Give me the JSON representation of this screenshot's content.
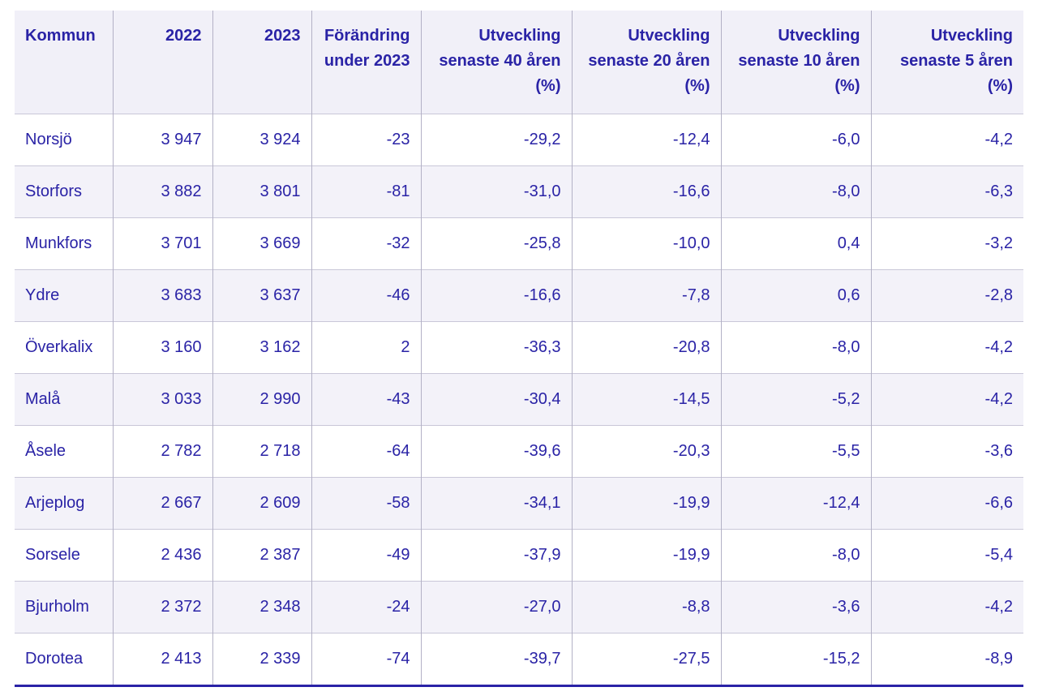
{
  "colors": {
    "text": "#2a23a6",
    "header_background": "#f1f0f8",
    "stripe_background": "#f3f2f9",
    "grid_vertical": "#b3b1c6",
    "grid_horizontal": "#c9c7d8",
    "table_bottom_border": "#2a23a6"
  },
  "chart_data": {
    "type": "table",
    "title": "",
    "columns": [
      "Kommun",
      "2022",
      "2023",
      "Förändring under 2023",
      "Utveckling senaste 40 åren (%)",
      "Utveckling senaste 20 åren (%)",
      "Utveckling senaste 10 åren (%)",
      "Utveckling senaste 5 åren (%)"
    ],
    "rows": [
      [
        "Norsjö",
        "3 947",
        "3 924",
        "-23",
        "-29,2",
        "-12,4",
        "-6,0",
        "-4,2"
      ],
      [
        "Storfors",
        "3 882",
        "3 801",
        "-81",
        "-31,0",
        "-16,6",
        "-8,0",
        "-6,3"
      ],
      [
        "Munkfors",
        "3 701",
        "3 669",
        "-32",
        "-25,8",
        "-10,0",
        "0,4",
        "-3,2"
      ],
      [
        "Ydre",
        "3 683",
        "3 637",
        "-46",
        "-16,6",
        "-7,8",
        "0,6",
        "-2,8"
      ],
      [
        "Överkalix",
        "3 160",
        "3 162",
        "2",
        "-36,3",
        "-20,8",
        "-8,0",
        "-4,2"
      ],
      [
        "Malå",
        "3 033",
        "2 990",
        "-43",
        "-30,4",
        "-14,5",
        "-5,2",
        "-4,2"
      ],
      [
        "Åsele",
        "2 782",
        "2 718",
        "-64",
        "-39,6",
        "-20,3",
        "-5,5",
        "-3,6"
      ],
      [
        "Arjeplog",
        "2 667",
        "2 609",
        "-58",
        "-34,1",
        "-19,9",
        "-12,4",
        "-6,6"
      ],
      [
        "Sorsele",
        "2 436",
        "2 387",
        "-49",
        "-37,9",
        "-19,9",
        "-8,0",
        "-5,4"
      ],
      [
        "Bjurholm",
        "2 372",
        "2 348",
        "-24",
        "-27,0",
        "-8,8",
        "-3,6",
        "-4,2"
      ],
      [
        "Dorotea",
        "2 413",
        "2 339",
        "-74",
        "-39,7",
        "-27,5",
        "-15,2",
        "-8,9"
      ]
    ]
  }
}
